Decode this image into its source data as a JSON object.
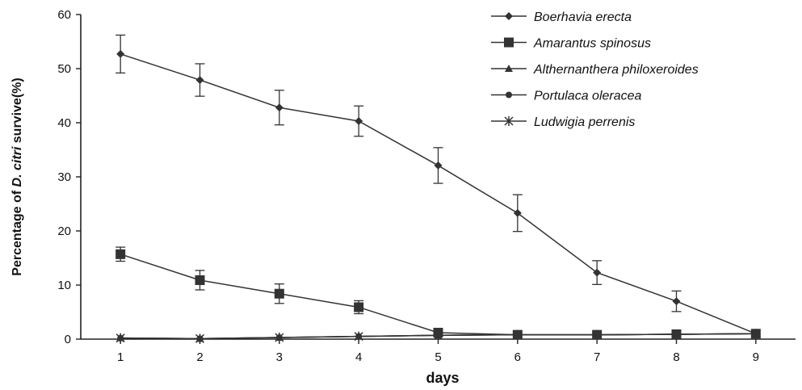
{
  "chart_data": {
    "type": "line",
    "xlabel": "days",
    "ylabel_parts": [
      "Percentage of ",
      "D. citri",
      " survive(%)"
    ],
    "x": [
      1,
      2,
      3,
      4,
      5,
      6,
      7,
      8,
      9
    ],
    "xlim": [
      0.5,
      9.5
    ],
    "ylim": [
      0,
      60
    ],
    "yticks": [
      0,
      10,
      20,
      30,
      40,
      50,
      60
    ],
    "grid": false,
    "legend_position": "top-right",
    "series": [
      {
        "name": "Boerhavia erecta",
        "marker": "diamond",
        "values": [
          52.7,
          47.9,
          42.8,
          40.3,
          32.1,
          23.3,
          12.3,
          7.0,
          1.0
        ],
        "errors": [
          3.5,
          3.0,
          3.2,
          2.8,
          3.3,
          3.4,
          2.2,
          1.9,
          0
        ]
      },
      {
        "name": "Amarantus spinosus",
        "marker": "square",
        "values": [
          15.7,
          10.9,
          8.4,
          5.9,
          1.2,
          0.8,
          0.8,
          0.9,
          1.0
        ],
        "errors": [
          1.3,
          1.8,
          1.8,
          1.2,
          0,
          0,
          0,
          0,
          0
        ]
      },
      {
        "name": "Althernanthera philoxeroides",
        "marker": "triangle",
        "values": [
          0.2,
          0.1,
          0.3,
          0.5,
          0.7,
          0.8,
          0.8,
          0.9,
          1.0
        ],
        "errors": [
          0,
          0,
          0,
          0,
          0,
          0,
          0,
          0,
          0
        ]
      },
      {
        "name": "Portulaca oleracea",
        "marker": "circle",
        "values": [
          0.2,
          0.1,
          0.3,
          0.5,
          0.7,
          0.8,
          0.8,
          0.9,
          1.0
        ],
        "errors": [
          0,
          0,
          0,
          0,
          0,
          0,
          0,
          0,
          0
        ]
      },
      {
        "name": "Ludwigia perrenis",
        "marker": "star",
        "values": [
          0.2,
          0.1,
          0.3,
          0.5,
          0.7,
          0.8,
          0.8,
          0.9,
          1.0
        ],
        "errors": [
          0,
          0,
          0,
          0,
          0,
          0,
          0,
          0,
          0
        ]
      }
    ],
    "colors": {
      "line": "#333333",
      "axis": "#222222",
      "text": "#111111"
    }
  }
}
